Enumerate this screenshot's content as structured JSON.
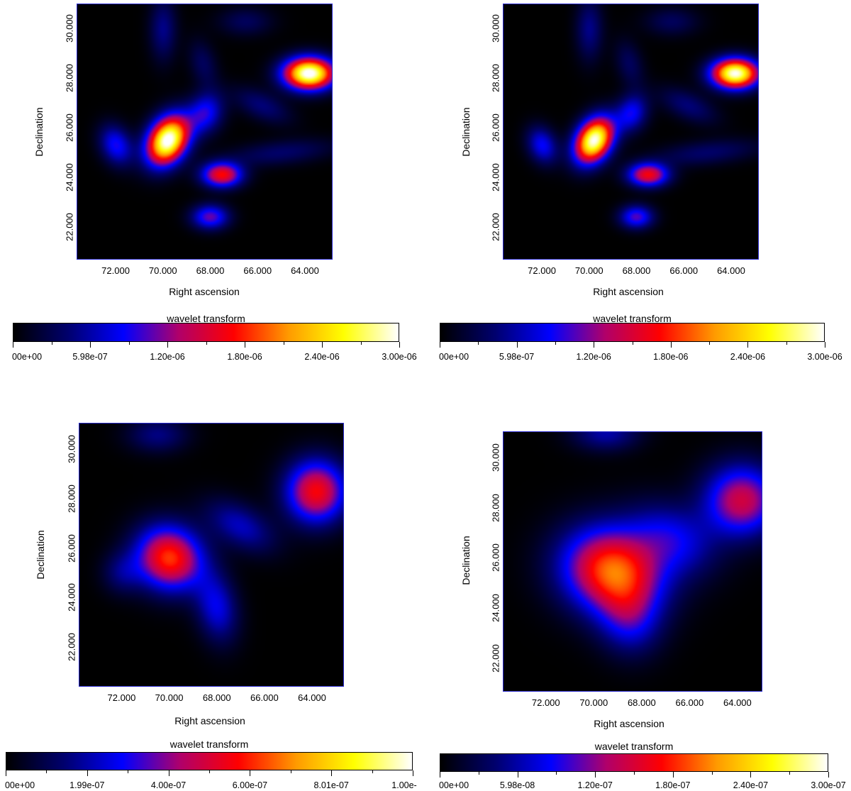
{
  "chart_data": [
    {
      "type": "heatmap",
      "xlabel": "Right ascension",
      "ylabel": "Declination",
      "xlim": [
        73.65,
        62.83
      ],
      "ylim": [
        20.7,
        31.0
      ],
      "xticks": [
        72,
        70,
        68,
        66,
        64
      ],
      "xtick_labels": [
        "72.000",
        "70.000",
        "68.000",
        "66.000",
        "64.000"
      ],
      "yticks": [
        22,
        24,
        26,
        28,
        30
      ],
      "ytick_labels": [
        "22.000",
        "24.000",
        "26.000",
        "28.000",
        "30.000"
      ],
      "colorbar": {
        "title": "wavelet transform",
        "range": [
          0,
          3e-06
        ],
        "tick_labels": [
          "00e+00",
          "5.98e-07",
          "1.20e-06",
          "1.80e-06",
          "2.40e-06",
          "3.00e-06"
        ]
      },
      "sources": [
        {
          "ra": 63.8,
          "dec": 28.2,
          "amp": 3.1e-06,
          "sra": 0.75,
          "sdec": 0.45,
          "rot": 0
        },
        {
          "ra": 69.8,
          "dec": 25.5,
          "amp": 3.1e-06,
          "sra": 0.55,
          "sdec": 0.75,
          "rot": -0.6
        },
        {
          "ra": 67.5,
          "dec": 24.1,
          "amp": 1.7e-06,
          "sra": 0.6,
          "sdec": 0.35,
          "rot": 0
        },
        {
          "ra": 68.0,
          "dec": 22.4,
          "amp": 1.1e-06,
          "sra": 0.55,
          "sdec": 0.35,
          "rot": 0
        },
        {
          "ra": 72.0,
          "dec": 25.3,
          "amp": 9e-07,
          "sra": 0.45,
          "sdec": 0.6,
          "rot": 0.5
        },
        {
          "ra": 68.2,
          "dec": 26.6,
          "amp": 9e-07,
          "sra": 0.5,
          "sdec": 0.6,
          "rot": -0.5
        },
        {
          "ra": 70.0,
          "dec": 30.0,
          "amp": 5e-07,
          "sra": 0.4,
          "sdec": 0.9,
          "rot": 0
        },
        {
          "ra": 68.3,
          "dec": 28.6,
          "amp": 3.5e-07,
          "sra": 0.4,
          "sdec": 0.7,
          "rot": 0.3
        },
        {
          "ra": 66.5,
          "dec": 30.3,
          "amp": 3.5e-07,
          "sra": 0.8,
          "sdec": 0.4,
          "rot": 0
        },
        {
          "ra": 65.0,
          "dec": 25.0,
          "amp": 4e-07,
          "sra": 1.6,
          "sdec": 0.35,
          "rot": 0.1
        },
        {
          "ra": 65.8,
          "dec": 26.9,
          "amp": 4.5e-07,
          "sra": 0.9,
          "sdec": 0.4,
          "rot": -0.4
        }
      ]
    },
    {
      "type": "heatmap",
      "xlabel": "Right ascension",
      "ylabel": "Declination",
      "xlim": [
        73.65,
        62.83
      ],
      "ylim": [
        20.7,
        31.0
      ],
      "xticks": [
        72,
        70,
        68,
        66,
        64
      ],
      "xtick_labels": [
        "72.000",
        "70.000",
        "68.000",
        "66.000",
        "64.000"
      ],
      "yticks": [
        22,
        24,
        26,
        28,
        30
      ],
      "ytick_labels": [
        "22.000",
        "24.000",
        "26.000",
        "28.000",
        "30.000"
      ],
      "colorbar": {
        "title": "wavelet transform",
        "range": [
          0,
          3e-06
        ],
        "tick_labels": [
          "00e+00",
          "5.98e-07",
          "1.20e-06",
          "1.80e-06",
          "2.40e-06",
          "3.00e-06"
        ]
      },
      "sources": [
        {
          "ra": 63.8,
          "dec": 28.2,
          "amp": 3e-06,
          "sra": 0.7,
          "sdec": 0.42,
          "rot": 0
        },
        {
          "ra": 69.8,
          "dec": 25.5,
          "amp": 3e-06,
          "sra": 0.5,
          "sdec": 0.7,
          "rot": -0.6
        },
        {
          "ra": 67.5,
          "dec": 24.1,
          "amp": 1.65e-06,
          "sra": 0.6,
          "sdec": 0.33,
          "rot": 0
        },
        {
          "ra": 68.0,
          "dec": 22.4,
          "amp": 1.05e-06,
          "sra": 0.5,
          "sdec": 0.33,
          "rot": 0
        },
        {
          "ra": 72.0,
          "dec": 25.3,
          "amp": 8.5e-07,
          "sra": 0.42,
          "sdec": 0.55,
          "rot": 0.5
        },
        {
          "ra": 68.2,
          "dec": 26.6,
          "amp": 8.5e-07,
          "sra": 0.45,
          "sdec": 0.55,
          "rot": -0.5
        },
        {
          "ra": 70.0,
          "dec": 30.0,
          "amp": 5e-07,
          "sra": 0.4,
          "sdec": 0.9,
          "rot": 0
        },
        {
          "ra": 68.3,
          "dec": 28.6,
          "amp": 3.5e-07,
          "sra": 0.4,
          "sdec": 0.7,
          "rot": 0.3
        },
        {
          "ra": 66.5,
          "dec": 30.3,
          "amp": 3.5e-07,
          "sra": 0.8,
          "sdec": 0.4,
          "rot": 0
        },
        {
          "ra": 65.0,
          "dec": 25.0,
          "amp": 4e-07,
          "sra": 1.6,
          "sdec": 0.35,
          "rot": 0.1
        },
        {
          "ra": 65.8,
          "dec": 26.9,
          "amp": 4.5e-07,
          "sra": 0.9,
          "sdec": 0.4,
          "rot": -0.4
        }
      ]
    },
    {
      "type": "heatmap",
      "xlabel": "Right ascension",
      "ylabel": "Declination",
      "xlim": [
        73.8,
        62.66
      ],
      "ylim": [
        20.4,
        31.06
      ],
      "xticks": [
        72,
        70,
        68,
        66,
        64
      ],
      "xtick_labels": [
        "72.000",
        "70.000",
        "68.000",
        "66.000",
        "64.000"
      ],
      "yticks": [
        22,
        24,
        26,
        28,
        30
      ],
      "ytick_labels": [
        "22.000",
        "24.000",
        "26.000",
        "28.000",
        "30.000"
      ],
      "colorbar": {
        "title": "wavelet transform",
        "range": [
          0,
          1e-06
        ],
        "tick_labels": [
          "00e+00",
          "1.99e-07",
          "4.00e-07",
          "6.00e-07",
          "8.01e-07",
          "1.00e-"
        ]
      },
      "sources": [
        {
          "ra": 70.0,
          "dec": 25.6,
          "amp": 6.2e-07,
          "sra": 1.0,
          "sdec": 0.9,
          "rot": -0.4
        },
        {
          "ra": 63.8,
          "dec": 28.3,
          "amp": 5.6e-07,
          "sra": 0.9,
          "sdec": 0.9,
          "rot": 0
        },
        {
          "ra": 68.0,
          "dec": 23.6,
          "amp": 2.6e-07,
          "sra": 0.6,
          "sdec": 1.0,
          "rot": 0.2
        },
        {
          "ra": 67.0,
          "dec": 26.9,
          "amp": 2.2e-07,
          "sra": 1.1,
          "sdec": 0.6,
          "rot": -0.5
        },
        {
          "ra": 70.5,
          "dec": 30.6,
          "amp": 1.6e-07,
          "sra": 0.9,
          "sdec": 0.5,
          "rot": 0
        },
        {
          "ra": 72.0,
          "dec": 25.0,
          "amp": 1.4e-07,
          "sra": 0.6,
          "sdec": 0.6,
          "rot": 0
        }
      ]
    },
    {
      "type": "heatmap",
      "xlabel": "Right ascension",
      "ylabel": "Declination",
      "xlim": [
        73.8,
        62.96
      ],
      "ylim": [
        20.67,
        31.04
      ],
      "xticks": [
        72,
        70,
        68,
        66,
        64
      ],
      "xtick_labels": [
        "72.000",
        "70.000",
        "68.000",
        "66.000",
        "64.000"
      ],
      "yticks": [
        22,
        24,
        26,
        28,
        30
      ],
      "ytick_labels": [
        "22.000",
        "24.000",
        "26.000",
        "28.000",
        "30.000"
      ],
      "colorbar": {
        "title": "wavelet transform",
        "range": [
          0,
          3e-07
        ],
        "tick_labels": [
          "00e+00",
          "5.98e-08",
          "1.20e-07",
          "1.80e-07",
          "2.40e-07",
          "3.00e-07"
        ]
      },
      "sources": [
        {
          "ra": 69.2,
          "dec": 25.5,
          "amp": 2e-07,
          "sra": 1.5,
          "sdec": 1.2,
          "rot": -0.2
        },
        {
          "ra": 63.8,
          "dec": 28.3,
          "amp": 1.45e-07,
          "sra": 1.1,
          "sdec": 1.0,
          "rot": 0
        },
        {
          "ra": 66.6,
          "dec": 26.8,
          "amp": 7e-08,
          "sra": 1.3,
          "sdec": 0.9,
          "rot": -0.5
        },
        {
          "ra": 68.5,
          "dec": 23.5,
          "amp": 7e-08,
          "sra": 0.9,
          "sdec": 1.0,
          "rot": 0.3
        },
        {
          "ra": 69.5,
          "dec": 31.0,
          "amp": 6e-08,
          "sra": 1.0,
          "sdec": 0.5,
          "rot": 0
        }
      ]
    }
  ],
  "colormap": [
    "#000000",
    "#00006e",
    "#0000ff",
    "#b0006a",
    "#ff0000",
    "#ff9a00",
    "#ffff00",
    "#ffffff"
  ]
}
